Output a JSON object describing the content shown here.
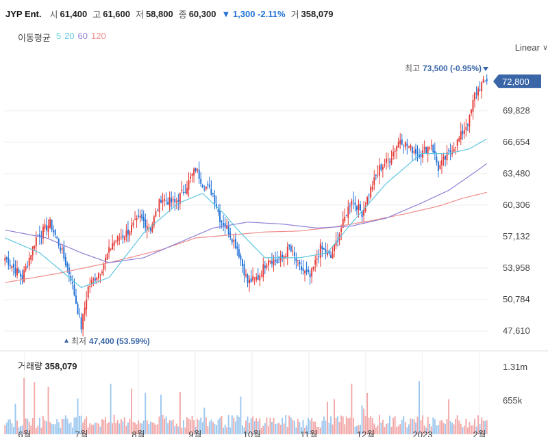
{
  "header": {
    "name": "JYP Ent.",
    "open_label": "시",
    "open": "61,400",
    "high_label": "고",
    "high": "61,600",
    "low_label": "저",
    "low": "58,800",
    "close_label": "종",
    "close": "60,300",
    "change": "▼ 1,300 -2.11%",
    "vol_label": "거",
    "volume": "358,079"
  },
  "ma_legend": {
    "title": "이동평균",
    "items": [
      {
        "label": "5",
        "color": "#5fd3d3"
      },
      {
        "label": "20",
        "color": "#5cc6e0"
      },
      {
        "label": "60",
        "color": "#8d7fd6"
      },
      {
        "label": "120",
        "color": "#f08a8a"
      }
    ]
  },
  "scale_mode": "Linear",
  "colors": {
    "up": "#e53935",
    "down": "#1e6fd6",
    "ma5": "#5fd3d3",
    "ma20": "#5cc6e0",
    "ma60": "#8d7fd6",
    "ma120": "#f08a8a",
    "badge": "#3a66a8",
    "vol_up": "#f2a7a7",
    "vol_down": "#9cc7ee"
  },
  "volume_title": "거래량",
  "volume_value": "358,079",
  "chart_data": {
    "type": "candlestick",
    "y_ticks": [
      "69,828",
      "66,654",
      "63,480",
      "60,306",
      "57,132",
      "53,958",
      "50,784",
      "47,610"
    ],
    "y_tick_values": [
      69828,
      66654,
      63480,
      60306,
      57132,
      53958,
      50784,
      47610
    ],
    "last_price": "72,800",
    "last_price_value": 72800,
    "max_label": "최고",
    "max_text": "73,500 (-0.95%)",
    "max_value": 73500,
    "min_label": "최저",
    "min_text": "47,400 (53.59%)",
    "min_value": 47400,
    "x_ticks": [
      "6월",
      "7월",
      "8월",
      "9월",
      "10월",
      "11월",
      "12월",
      "2023",
      "2월"
    ],
    "volume_ticks": [
      "1.31m",
      "655k"
    ],
    "volume_tick_values": [
      1310000,
      655000
    ],
    "close_path": [
      [
        0,
        55000
      ],
      [
        10,
        53000
      ],
      [
        18,
        57000
      ],
      [
        26,
        58500
      ],
      [
        32,
        56000
      ],
      [
        38,
        53000
      ],
      [
        44,
        48000
      ],
      [
        48,
        52000
      ],
      [
        56,
        54000
      ],
      [
        62,
        56500
      ],
      [
        70,
        57500
      ],
      [
        78,
        59000
      ],
      [
        84,
        58000
      ],
      [
        90,
        61000
      ],
      [
        98,
        60500
      ],
      [
        104,
        62000
      ],
      [
        110,
        64000
      ],
      [
        114,
        62500
      ],
      [
        120,
        61500
      ],
      [
        124,
        59000
      ],
      [
        128,
        58000
      ],
      [
        134,
        56000
      ],
      [
        140,
        52500
      ],
      [
        146,
        53000
      ],
      [
        152,
        55000
      ],
      [
        158,
        54500
      ],
      [
        164,
        56000
      ],
      [
        170,
        54000
      ],
      [
        176,
        53000
      ],
      [
        182,
        56000
      ],
      [
        188,
        55000
      ],
      [
        194,
        58000
      ],
      [
        200,
        61000
      ],
      [
        206,
        59500
      ],
      [
        210,
        61500
      ],
      [
        216,
        64000
      ],
      [
        222,
        65000
      ],
      [
        228,
        67000
      ],
      [
        234,
        66000
      ],
      [
        240,
        65500
      ],
      [
        246,
        66500
      ],
      [
        250,
        64000
      ],
      [
        256,
        65500
      ],
      [
        262,
        67000
      ],
      [
        268,
        69000
      ],
      [
        271,
        71500
      ],
      [
        275,
        72500
      ],
      [
        278,
        72800
      ]
    ],
    "ma_path": {
      "ma20": [
        [
          0,
          57000
        ],
        [
          20,
          55500
        ],
        [
          44,
          52000
        ],
        [
          60,
          53000
        ],
        [
          80,
          57500
        ],
        [
          100,
          60500
        ],
        [
          114,
          61500
        ],
        [
          126,
          59500
        ],
        [
          136,
          57500
        ],
        [
          150,
          55000
        ],
        [
          170,
          55000
        ],
        [
          186,
          55500
        ],
        [
          200,
          58500
        ],
        [
          220,
          62500
        ],
        [
          240,
          65500
        ],
        [
          256,
          65500
        ],
        [
          268,
          66000
        ],
        [
          278,
          67000
        ]
      ],
      "ma60": [
        [
          0,
          57800
        ],
        [
          24,
          57000
        ],
        [
          44,
          55500
        ],
        [
          60,
          54500
        ],
        [
          80,
          55000
        ],
        [
          100,
          56500
        ],
        [
          120,
          58000
        ],
        [
          140,
          58600
        ],
        [
          160,
          58400
        ],
        [
          180,
          58000
        ],
        [
          200,
          58200
        ],
        [
          220,
          59000
        ],
        [
          240,
          60500
        ],
        [
          256,
          61800
        ],
        [
          270,
          63500
        ],
        [
          278,
          64500
        ]
      ],
      "ma120": [
        [
          0,
          52500
        ],
        [
          30,
          53400
        ],
        [
          60,
          54500
        ],
        [
          90,
          55800
        ],
        [
          110,
          57000
        ],
        [
          130,
          57300
        ],
        [
          150,
          57600
        ],
        [
          170,
          57700
        ],
        [
          190,
          58100
        ],
        [
          210,
          58700
        ],
        [
          230,
          59400
        ],
        [
          250,
          60200
        ],
        [
          264,
          61000
        ],
        [
          278,
          61600
        ]
      ]
    }
  }
}
